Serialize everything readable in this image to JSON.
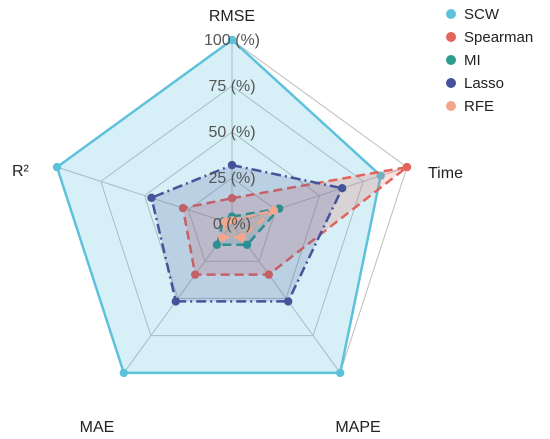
{
  "chart_data": {
    "type": "radar",
    "axes": [
      "RMSE",
      "Time",
      "MAPE",
      "MAE",
      "R²"
    ],
    "rlim": [
      0,
      100
    ],
    "ticks": [
      {
        "value": 0,
        "label": "0 (%)"
      },
      {
        "value": 25,
        "label": "25 (%)"
      },
      {
        "value": 50,
        "label": "50 (%)"
      },
      {
        "value": 75,
        "label": "75 (%)"
      },
      {
        "value": 100,
        "label": "100 (%)"
      }
    ],
    "grid": true,
    "legend_position": "top-right",
    "series": [
      {
        "name": "SCW",
        "color": "#5ec1dc",
        "fill_opacity": 0.25,
        "dash": "solid",
        "values": [
          100,
          85,
          100,
          100,
          100
        ]
      },
      {
        "name": "Spearman",
        "color": "#e2645a",
        "fill_opacity": 0.2,
        "dash": "dashed",
        "values": [
          14,
          100,
          34,
          34,
          28
        ]
      },
      {
        "name": "MI",
        "color": "#2a9d8f",
        "fill_opacity": 0.15,
        "dash": "dashed",
        "values": [
          4,
          27,
          14,
          14,
          5
        ]
      },
      {
        "name": "Lasso",
        "color": "#45539a",
        "fill_opacity": 0.2,
        "dash": "dashdot",
        "values": [
          32,
          63,
          52,
          52,
          46
        ]
      },
      {
        "name": "RFE",
        "color": "#f4a58a",
        "fill_opacity": 0.2,
        "dash": "dashed",
        "values": [
          2,
          24,
          9,
          9,
          4
        ]
      }
    ]
  }
}
